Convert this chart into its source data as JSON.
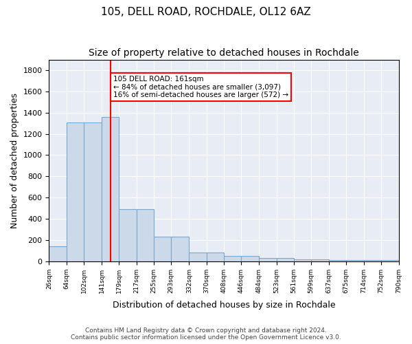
{
  "title": "105, DELL ROAD, ROCHDALE, OL12 6AZ",
  "subtitle": "Size of property relative to detached houses in Rochdale",
  "xlabel": "Distribution of detached houses by size in Rochdale",
  "ylabel": "Number of detached properties",
  "bar_edges": [
    26,
    64,
    102,
    141,
    179,
    217,
    255,
    293,
    332,
    370,
    408,
    446,
    484,
    523,
    561,
    599,
    637,
    675,
    714,
    752,
    790
  ],
  "bar_heights": [
    140,
    1310,
    1310,
    1360,
    490,
    490,
    230,
    230,
    85,
    85,
    50,
    50,
    30,
    30,
    20,
    20,
    10,
    10,
    10,
    10,
    0
  ],
  "bar_color": "#ccd9e8",
  "bar_edge_color": "#7aa8cc",
  "property_line_x": 161,
  "property_line_color": "red",
  "annotation_text": "105 DELL ROAD: 161sqm\n← 84% of detached houses are smaller (3,097)\n16% of semi-detached houses are larger (572) →",
  "annotation_box_color": "white",
  "annotation_box_edgecolor": "red",
  "ylim": [
    0,
    1900
  ],
  "tick_labels": [
    "26sqm",
    "64sqm",
    "102sqm",
    "141sqm",
    "179sqm",
    "217sqm",
    "255sqm",
    "293sqm",
    "332sqm",
    "370sqm",
    "408sqm",
    "446sqm",
    "484sqm",
    "523sqm",
    "561sqm",
    "599sqm",
    "637sqm",
    "675sqm",
    "714sqm",
    "752sqm",
    "790sqm"
  ],
  "background_color": "#e8edf5",
  "footer_text": "Contains HM Land Registry data © Crown copyright and database right 2024.\nContains public sector information licensed under the Open Government Licence v3.0.",
  "title_fontsize": 11,
  "subtitle_fontsize": 10,
  "ylabel_fontsize": 9,
  "xlabel_fontsize": 9
}
